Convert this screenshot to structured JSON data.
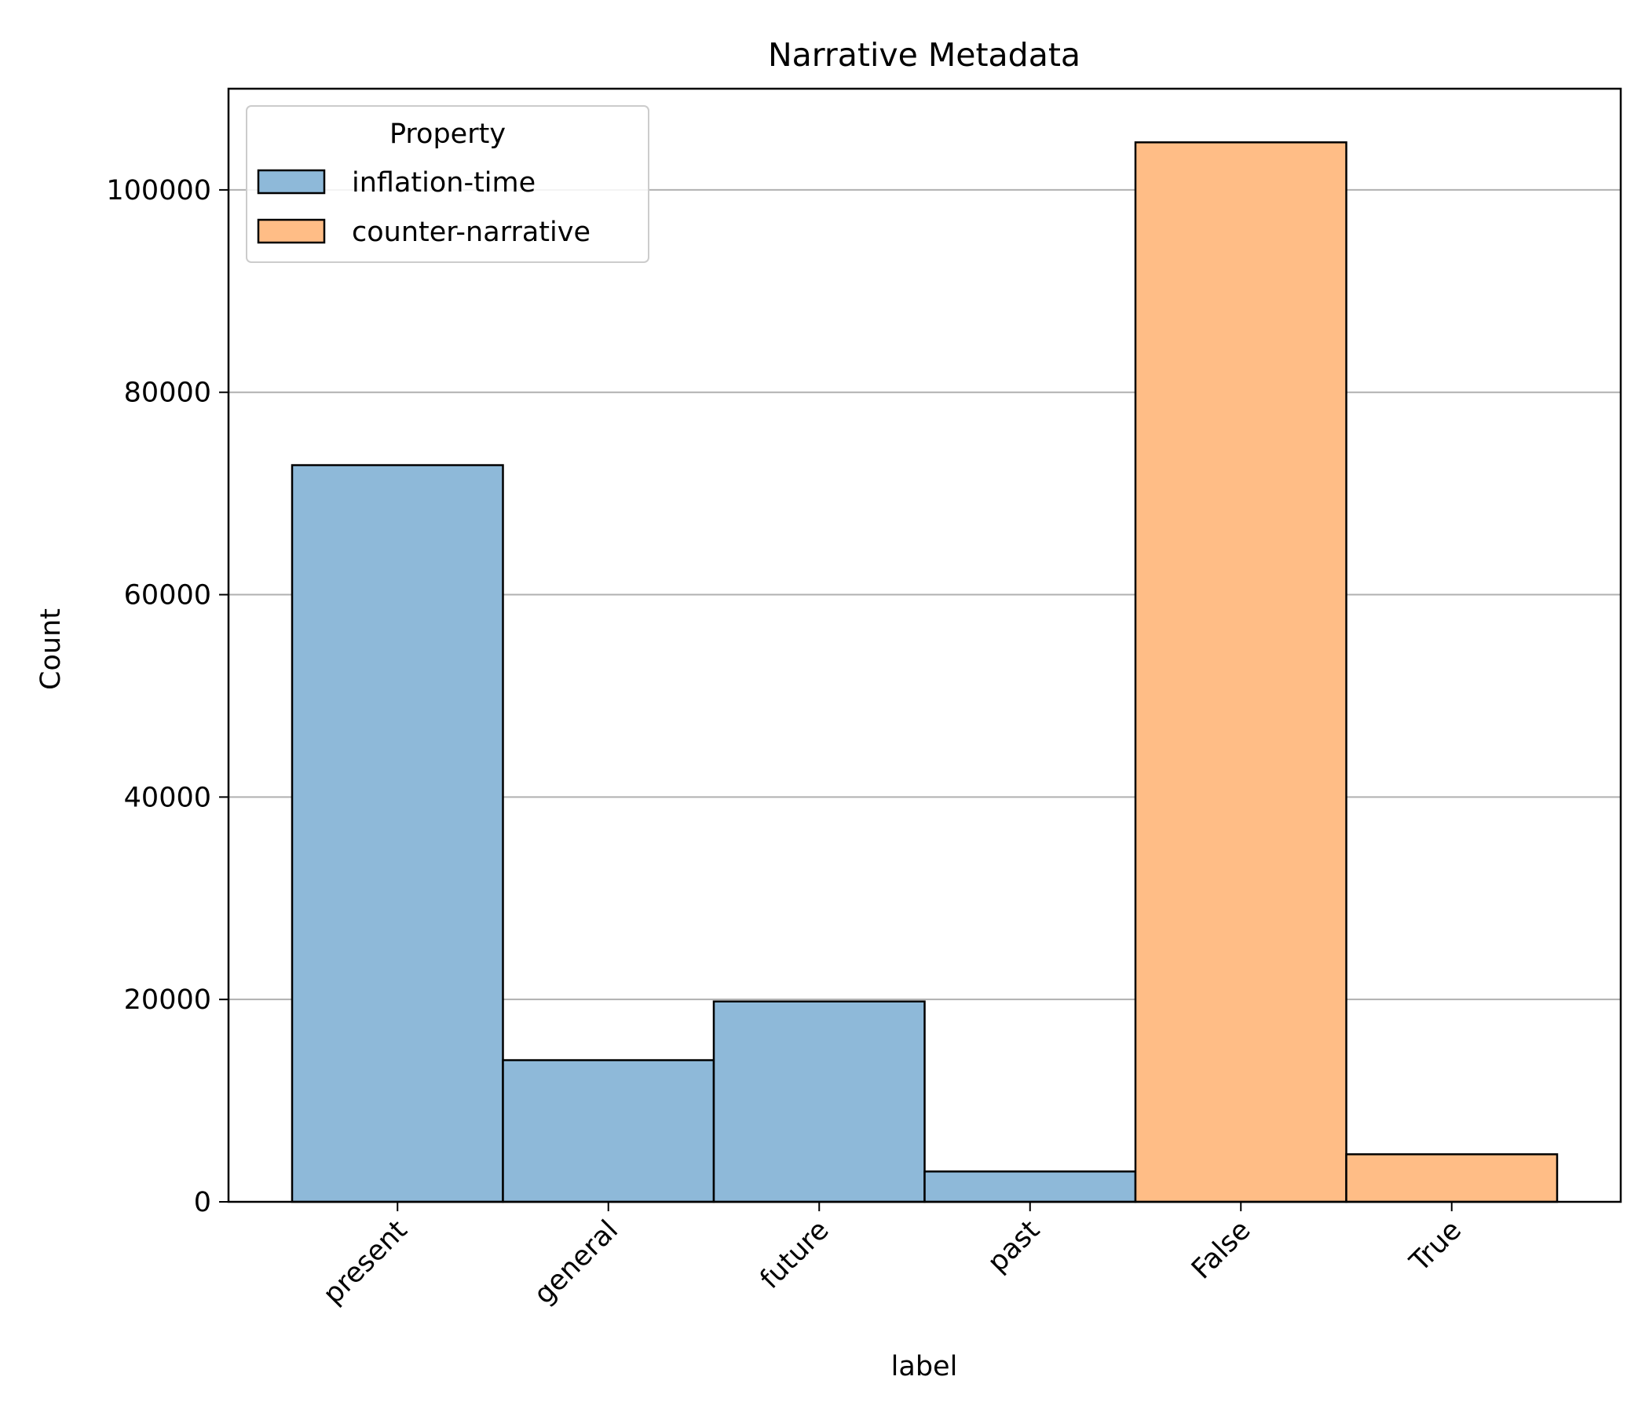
{
  "chart_data": {
    "type": "bar",
    "title": "Narrative Metadata",
    "xlabel": "label",
    "ylabel": "Count",
    "ylim": [
      0,
      110000
    ],
    "yticks": [
      {
        "value": 0,
        "label": "0"
      },
      {
        "value": 20000,
        "label": "20000"
      },
      {
        "value": 40000,
        "label": "40000"
      },
      {
        "value": 60000,
        "label": "60000"
      },
      {
        "value": 80000,
        "label": "80000"
      },
      {
        "value": 100000,
        "label": "100000"
      }
    ],
    "grid": "horizontal",
    "legend_placement": "top-left",
    "legend": {
      "title": "Property",
      "entries": [
        {
          "name": "inflation-time",
          "color": "#8eb9d9"
        },
        {
          "name": "counter-narrative",
          "color": "#ffbd86"
        }
      ]
    },
    "categories": [
      "present",
      "general",
      "future",
      "past",
      "False",
      "True"
    ],
    "series": [
      {
        "name": "inflation-time",
        "color": "#8eb9d9",
        "values": [
          72800,
          14000,
          19800,
          3000,
          null,
          null
        ]
      },
      {
        "name": "counter-narrative",
        "color": "#ffbd86",
        "values": [
          null,
          null,
          null,
          null,
          104700,
          4700
        ]
      }
    ]
  }
}
